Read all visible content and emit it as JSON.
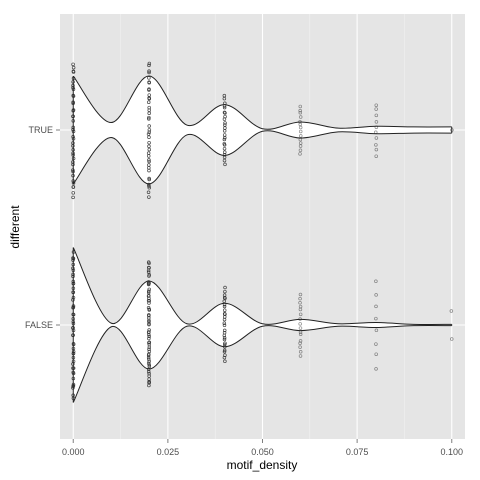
{
  "chart_data": {
    "type": "violin",
    "title": "",
    "xlabel": "motif_density",
    "ylabel": "different",
    "xlim": [
      -0.0035,
      0.1035
    ],
    "x_ticks": [
      {
        "value": 0.0,
        "label": "0.000"
      },
      {
        "value": 0.025,
        "label": "0.025"
      },
      {
        "value": 0.05,
        "label": "0.050"
      },
      {
        "value": 0.075,
        "label": "0.075"
      },
      {
        "value": 0.1,
        "label": "0.100"
      }
    ],
    "categories": [
      "TRUE",
      "FALSE"
    ],
    "grid": true,
    "colors": {
      "panel": "#e5e5e5",
      "grid_major": "#ffffff",
      "grid_minor": "#f2f2f2",
      "violin_fill": "#ffffff",
      "violin_stroke": "#222222",
      "point": "#333333"
    },
    "series": [
      {
        "category": "TRUE",
        "violin_density": [
          [
            0.0,
            0.87
          ],
          [
            0.01,
            0.12
          ],
          [
            0.02,
            0.87
          ],
          [
            0.03,
            0.08
          ],
          [
            0.04,
            0.41
          ],
          [
            0.05,
            0.02
          ],
          [
            0.06,
            0.13
          ],
          [
            0.07,
            0.03
          ],
          [
            0.08,
            0.06
          ],
          [
            0.09,
            0.05
          ],
          [
            0.1,
            0.05
          ]
        ],
        "point_groups": [
          {
            "x": 0.0,
            "count": 40,
            "spread": 0.7
          },
          {
            "x": 0.02,
            "count": 40,
            "spread": 0.7
          },
          {
            "x": 0.04,
            "count": 24,
            "spread": 0.35
          },
          {
            "x": 0.06,
            "count": 14,
            "spread": 0.25
          },
          {
            "x": 0.08,
            "count": 10,
            "spread": 0.27
          },
          {
            "x": 0.1,
            "count": 1,
            "spread": 0.1
          }
        ]
      },
      {
        "category": "FALSE",
        "violin_density": [
          [
            0.0,
            1.25
          ],
          [
            0.01,
            0.03
          ],
          [
            0.02,
            0.71
          ],
          [
            0.03,
            0.02
          ],
          [
            0.04,
            0.35
          ],
          [
            0.05,
            0.02
          ],
          [
            0.06,
            0.09
          ],
          [
            0.07,
            0.02
          ],
          [
            0.08,
            0.04
          ],
          [
            0.09,
            0.01
          ],
          [
            0.1,
            0.01
          ]
        ],
        "point_groups": [
          {
            "x": 0.0,
            "count": 50,
            "spread": 0.75
          },
          {
            "x": 0.02,
            "count": 60,
            "spread": 0.65
          },
          {
            "x": 0.04,
            "count": 28,
            "spread": 0.38
          },
          {
            "x": 0.06,
            "count": 16,
            "spread": 0.33
          },
          {
            "x": 0.08,
            "count": 8,
            "spread": 0.45
          },
          {
            "x": 0.1,
            "count": 2,
            "spread": 0.15
          }
        ]
      }
    ]
  }
}
